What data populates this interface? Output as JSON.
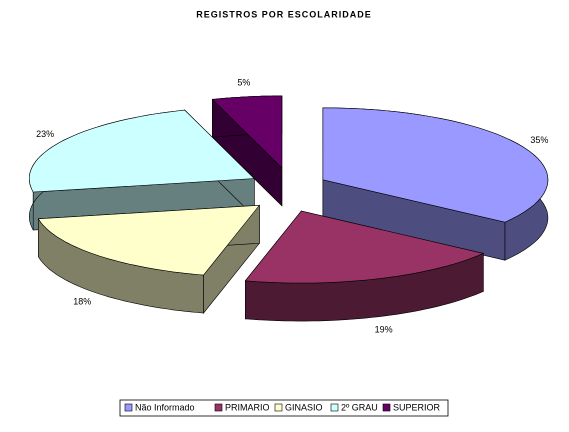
{
  "chart_data": {
    "type": "pie3d",
    "title": "REGISTROS POR ESCOLARIDADE",
    "categories": [
      "Não Informado",
      "PRIMARIO",
      "GINASIO",
      "2º GRAU",
      "SUPERIOR"
    ],
    "values": [
      35,
      19,
      18,
      23,
      5
    ],
    "value_labels": [
      "35%",
      "19%",
      "18%",
      "23%",
      "5%"
    ],
    "colors": [
      "#9999ff",
      "#993366",
      "#ffffcc",
      "#ccffff",
      "#660066"
    ],
    "legend": "bottom"
  }
}
